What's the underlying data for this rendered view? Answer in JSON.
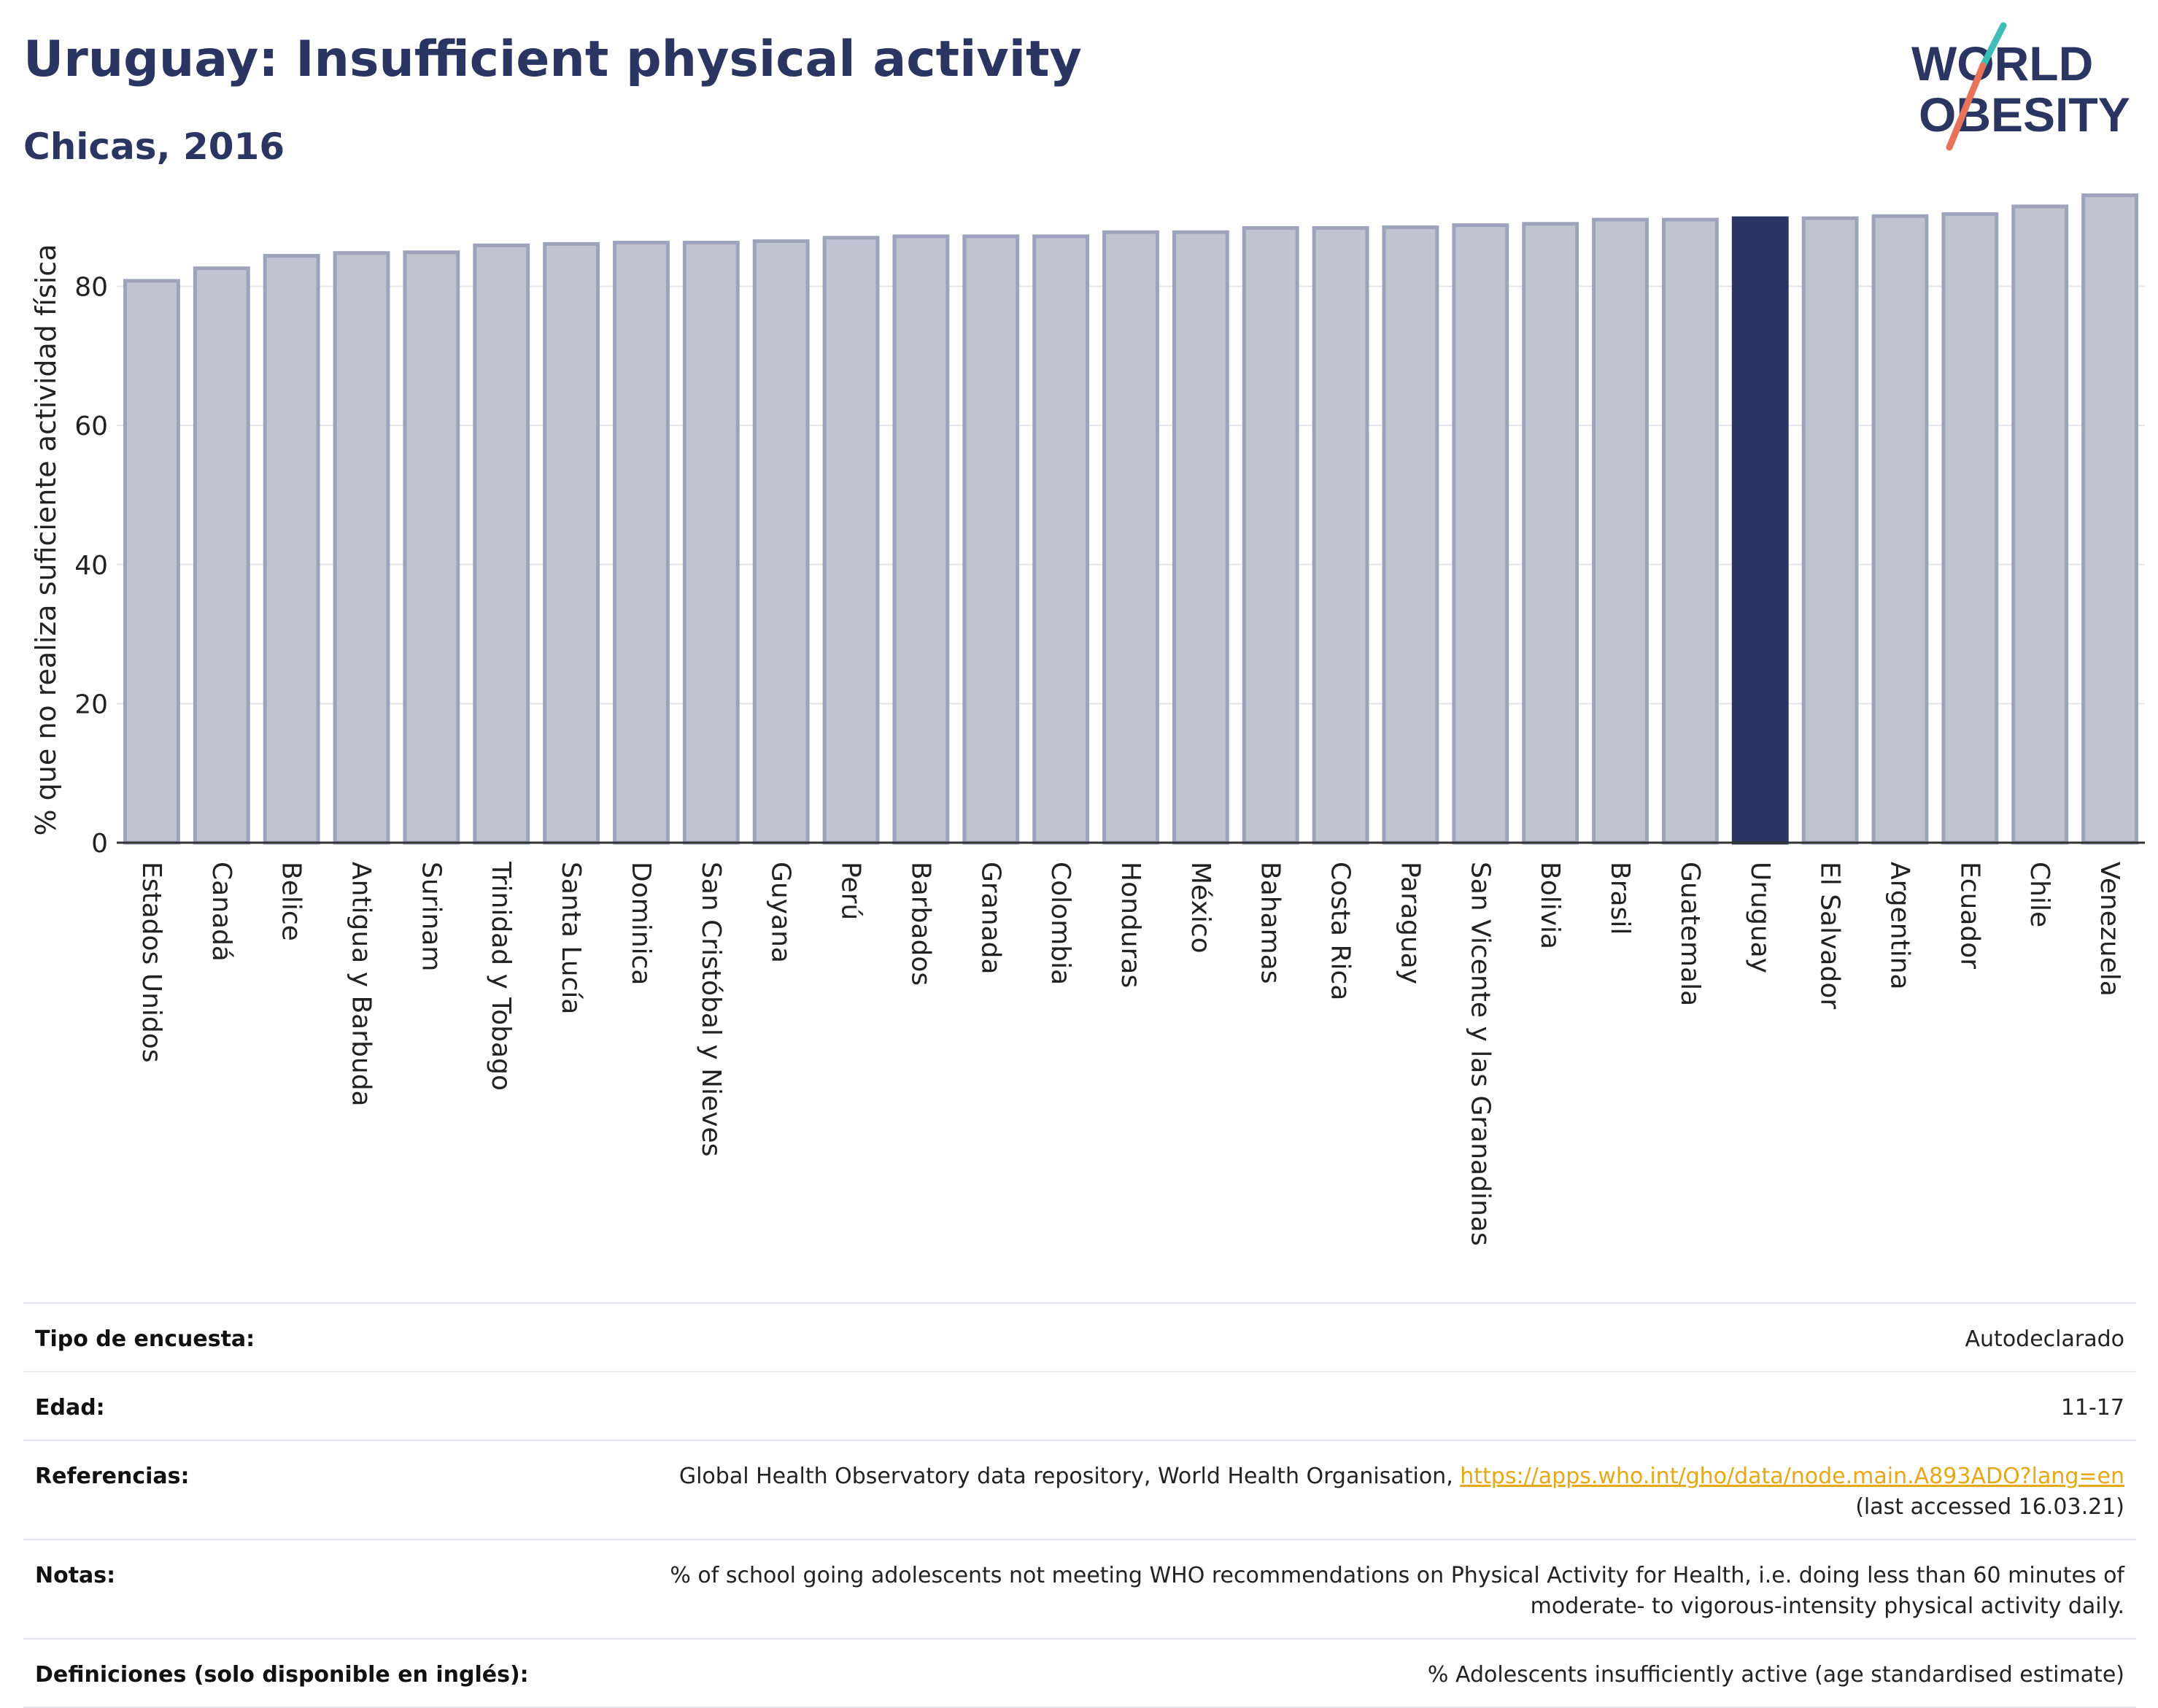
{
  "header": {
    "title": "Uruguay: Insufficient physical activity",
    "subtitle": "Chicas, 2016"
  },
  "logo": {
    "line1": "WORLD",
    "line2": "OBESITY",
    "colors": {
      "text": "#2a3561",
      "slash_top": "#3dbdb6",
      "slash_bottom": "#e8735a"
    }
  },
  "chart_data": {
    "type": "bar",
    "title": "Uruguay: Insufficient physical activity",
    "subtitle": "Chicas, 2016",
    "xlabel": "",
    "ylabel": "% que no realiza suficiente actividad física",
    "ylim": [
      0,
      96
    ],
    "yticks": [
      0,
      20,
      40,
      60,
      80
    ],
    "grid": true,
    "highlight": "Uruguay",
    "colors": {
      "bar": "#c0c3d0",
      "bar_border": "#9ea3bc",
      "highlight": "#2a3561"
    },
    "categories": [
      "Estados Unidos",
      "Canadá",
      "Belice",
      "Antigua y Barbuda",
      "Surinam",
      "Trinidad y Tobago",
      "Santa Lucía",
      "Dominica",
      "San Cristóbal y Nieves",
      "Guyana",
      "Perú",
      "Barbados",
      "Granada",
      "Colombia",
      "Honduras",
      "México",
      "Bahamas",
      "Costa Rica",
      "Paraguay",
      "San Vicente y las Granadinas",
      "Bolivia",
      "Brasil",
      "Guatemala",
      "Uruguay",
      "El Salvador",
      "Argentina",
      "Ecuador",
      "Chile",
      "Venezuela"
    ],
    "values": [
      80.8,
      82.6,
      84.4,
      84.8,
      84.9,
      85.9,
      86.1,
      86.3,
      86.3,
      86.5,
      87.0,
      87.2,
      87.2,
      87.2,
      87.8,
      87.8,
      88.4,
      88.4,
      88.5,
      88.8,
      89.0,
      89.6,
      89.6,
      89.8,
      89.8,
      90.1,
      90.4,
      91.5,
      93.1
    ]
  },
  "info": [
    {
      "label": "Tipo de encuesta:",
      "value": "Autodeclarado"
    },
    {
      "label": "Edad:",
      "value": "11-17"
    },
    {
      "label": "Referencias:",
      "value": "Global Health Observatory data repository, World Health Organisation, ",
      "link": "https://apps.who.int/gho/data/node.main.A893ADO?lang=en",
      "value_after": "(last accessed 16.03.21)"
    },
    {
      "label": "Notas:",
      "value": "% of school going adolescents not meeting WHO recommendations on Physical Activity for Health, i.e. doing less than 60 minutes of moderate- to vigorous-intensity physical activity daily."
    },
    {
      "label": "Definiciones (solo disponible en inglés):",
      "value": "% Adolescents insufficiently active (age standardised estimate)"
    }
  ]
}
